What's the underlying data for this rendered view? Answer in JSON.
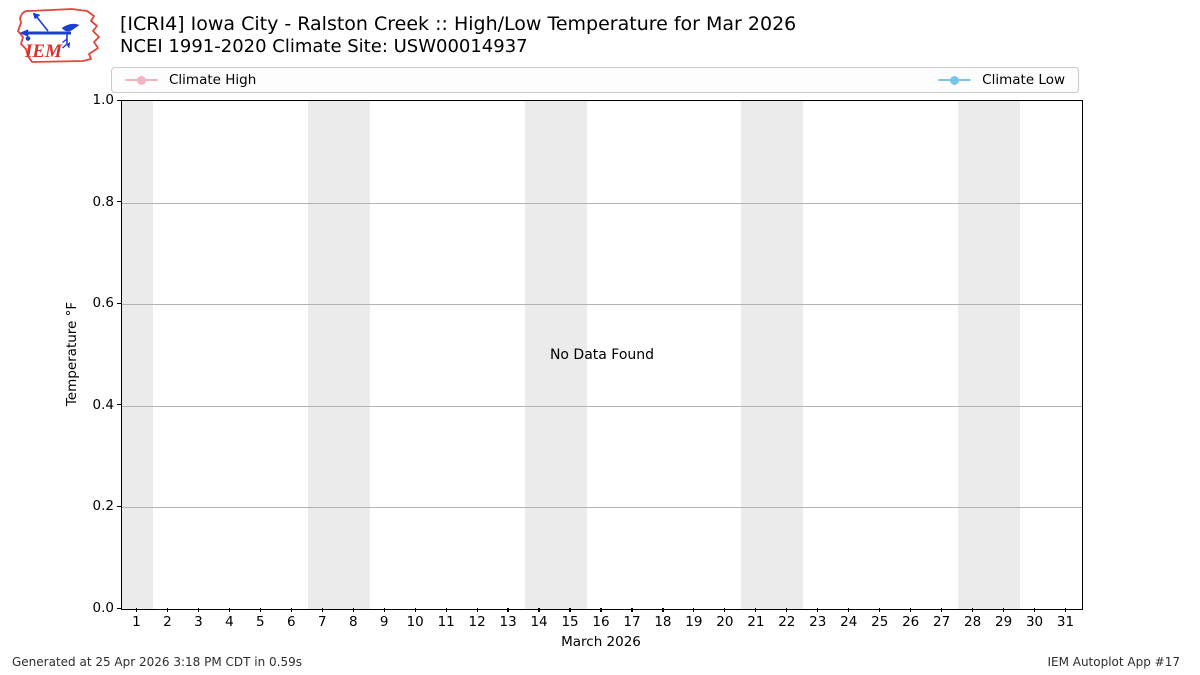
{
  "header": {
    "title": "[ICRI4] Iowa City - Ralston Creek :: High/Low Temperature for Mar 2026",
    "subtitle": "NCEI 1991-2020 Climate Site: USW00014937",
    "logo_text": "IEM"
  },
  "legend": {
    "items": [
      {
        "label": "Climate High",
        "color": "#F8B1C1"
      },
      {
        "label": "Climate Low",
        "color": "#79C7E7"
      }
    ]
  },
  "chart_data": {
    "type": "line",
    "title": "[ICRI4] Iowa City - Ralston Creek :: High/Low Temperature for Mar 2026",
    "subtitle": "NCEI 1991-2020 Climate Site: USW00014937",
    "x": [],
    "series": [
      {
        "name": "Climate High",
        "color": "#F8B1C1",
        "values": []
      },
      {
        "name": "Climate Low",
        "color": "#79C7E7",
        "values": []
      }
    ],
    "no_data_text": "No Data Found",
    "xlabel": "March 2026",
    "ylabel": "Temperature °F",
    "xlim": [
      0.5,
      31.5
    ],
    "ylim": [
      0.0,
      1.0
    ],
    "yticks": [
      0.0,
      0.2,
      0.4,
      0.6,
      0.8,
      1.0
    ],
    "ytick_labels": [
      "0.0",
      "0.2",
      "0.4",
      "0.6",
      "0.8",
      "1.0"
    ],
    "xticks": [
      1,
      2,
      3,
      4,
      5,
      6,
      7,
      8,
      9,
      10,
      11,
      12,
      13,
      14,
      15,
      16,
      17,
      18,
      19,
      20,
      21,
      22,
      23,
      24,
      25,
      26,
      27,
      28,
      29,
      30,
      31
    ],
    "weekend_bands": [
      [
        0.5,
        1.5
      ],
      [
        6.5,
        8.5
      ],
      [
        13.5,
        15.5
      ],
      [
        20.5,
        22.5
      ],
      [
        27.5,
        29.5
      ]
    ],
    "band_color": "#EBEBEB",
    "grid_color": "#B3B3B3",
    "grid": "horizontal-only",
    "legend_position": "top"
  },
  "footer": {
    "generated": "Generated at 25 Apr 2026 3:18 PM CDT in 0.59s",
    "app": "IEM Autoplot App #17"
  }
}
